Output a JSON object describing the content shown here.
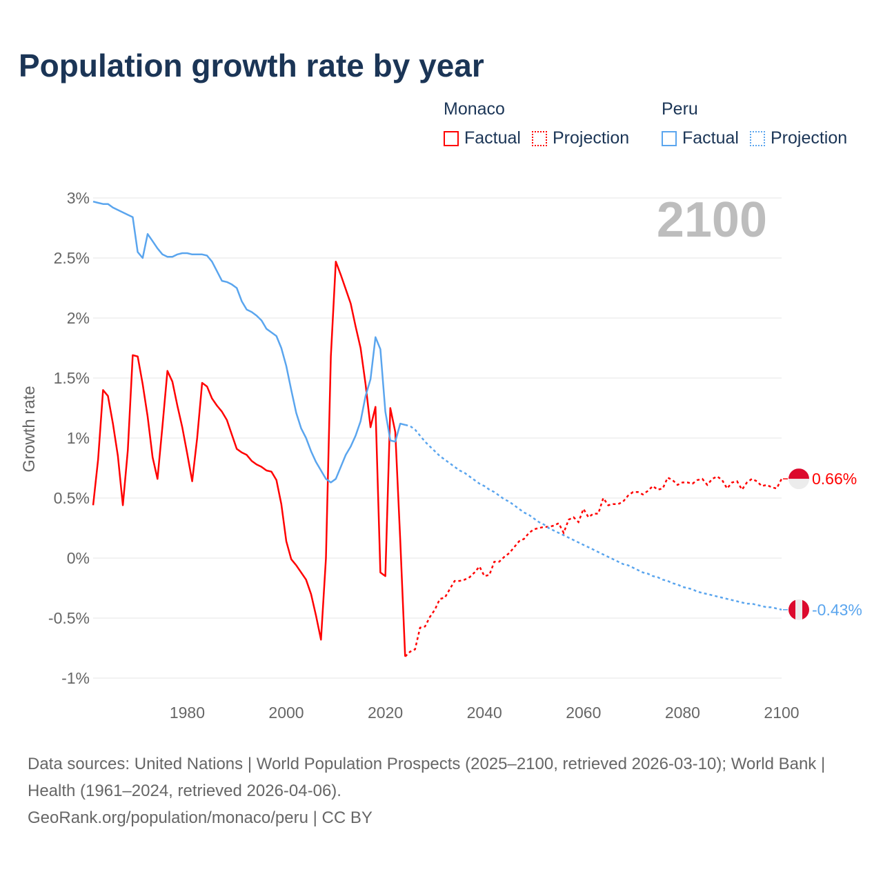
{
  "title": "Population growth rate by year",
  "legend": {
    "groups": [
      {
        "name": "Monaco",
        "factual": "Factual",
        "projection": "Projection",
        "color": "#ff0000"
      },
      {
        "name": "Peru",
        "factual": "Factual",
        "projection": "Projection",
        "color": "#5aa5ee"
      }
    ]
  },
  "current_year_label": "2100",
  "footer": {
    "sources": "Data sources: United Nations | World Population Prospects (2025–2100, retrieved 2026-03-10); World Bank | Health (1961–2024, retrieved 2026-04-06).",
    "link": "GeoRank.org/population/monaco/peru | CC BY"
  },
  "chart_data": {
    "type": "line",
    "ylabel": "Growth rate",
    "xlim": [
      1961,
      2100
    ],
    "ylim": [
      -1.15,
      3
    ],
    "x_ticks": [
      1980,
      2000,
      2020,
      2040,
      2060,
      2080,
      2100
    ],
    "x_tick_labels": [
      "1980",
      "2000",
      "2020",
      "2040",
      "2060",
      "2080",
      "2100"
    ],
    "y_ticks": [
      3,
      2.5,
      2,
      1.5,
      1,
      0.5,
      0,
      -0.5,
      -1
    ],
    "y_tick_labels": [
      "3%",
      "2.5%",
      "2%",
      "1.5%",
      "1%",
      "0.5%",
      "0%",
      "-0.5%",
      "-1%"
    ],
    "series": [
      {
        "name": "Monaco",
        "color": "#ff0000",
        "end_label": "0.66%",
        "factual_start": 1961,
        "factual": [
          0.44,
          0.82,
          1.4,
          1.35,
          1.12,
          0.85,
          0.44,
          0.9,
          1.69,
          1.68,
          1.45,
          1.18,
          0.84,
          0.66,
          1.1,
          1.56,
          1.47,
          1.27,
          1.09,
          0.87,
          0.64,
          1.0,
          1.46,
          1.43,
          1.33,
          1.27,
          1.22,
          1.15,
          1.03,
          0.91,
          0.88,
          0.86,
          0.81,
          0.78,
          0.76,
          0.73,
          0.72,
          0.65,
          0.45,
          0.14,
          -0.01,
          -0.06,
          -0.12,
          -0.18,
          -0.3,
          -0.48,
          -0.68,
          0.0,
          1.68,
          2.47,
          2.36,
          2.24,
          2.12,
          1.93,
          1.75,
          1.45,
          1.09,
          1.26,
          -0.12,
          -0.15,
          1.25,
          1.05,
          0.15,
          -0.82
        ],
        "projection_start": 2025,
        "projection": [
          -0.78,
          -0.76,
          -0.58,
          -0.57,
          -0.49,
          -0.43,
          -0.34,
          -0.33,
          -0.26,
          -0.19,
          -0.19,
          -0.18,
          -0.16,
          -0.12,
          -0.07,
          -0.15,
          -0.14,
          -0.03,
          -0.03,
          0.01,
          0.04,
          0.09,
          0.14,
          0.16,
          0.21,
          0.24,
          0.25,
          0.26,
          0.26,
          0.27,
          0.29,
          0.21,
          0.32,
          0.34,
          0.3,
          0.41,
          0.34,
          0.37,
          0.37,
          0.5,
          0.44,
          0.45,
          0.45,
          0.47,
          0.52,
          0.55,
          0.55,
          0.53,
          0.56,
          0.6,
          0.57,
          0.58,
          0.67,
          0.65,
          0.61,
          0.63,
          0.63,
          0.62,
          0.65,
          0.66,
          0.61,
          0.66,
          0.68,
          0.65,
          0.58,
          0.63,
          0.64,
          0.57,
          0.63,
          0.66,
          0.64,
          0.6,
          0.61,
          0.59,
          0.58,
          0.66
        ]
      },
      {
        "name": "Peru",
        "color": "#5aa5ee",
        "end_label": "-0.43%",
        "factual_start": 1961,
        "factual": [
          2.97,
          2.96,
          2.95,
          2.95,
          2.92,
          2.9,
          2.88,
          2.86,
          2.84,
          2.55,
          2.5,
          2.7,
          2.64,
          2.58,
          2.53,
          2.51,
          2.51,
          2.53,
          2.54,
          2.54,
          2.53,
          2.53,
          2.53,
          2.52,
          2.47,
          2.39,
          2.31,
          2.3,
          2.28,
          2.25,
          2.14,
          2.07,
          2.05,
          2.02,
          1.98,
          1.91,
          1.88,
          1.85,
          1.75,
          1.6,
          1.4,
          1.21,
          1.08,
          1.0,
          0.89,
          0.8,
          0.73,
          0.66,
          0.63,
          0.66,
          0.76,
          0.86,
          0.93,
          1.02,
          1.14,
          1.35,
          1.49,
          1.84,
          1.74,
          1.22,
          0.98,
          0.97,
          1.12,
          1.11
        ],
        "projection_start": 2025,
        "projection": [
          1.1,
          1.07,
          1.02,
          0.97,
          0.93,
          0.89,
          0.85,
          0.82,
          0.79,
          0.76,
          0.73,
          0.71,
          0.68,
          0.65,
          0.62,
          0.6,
          0.57,
          0.55,
          0.52,
          0.49,
          0.47,
          0.44,
          0.41,
          0.38,
          0.36,
          0.33,
          0.3,
          0.28,
          0.25,
          0.23,
          0.21,
          0.19,
          0.17,
          0.15,
          0.13,
          0.11,
          0.09,
          0.07,
          0.05,
          0.03,
          0.01,
          -0.01,
          -0.03,
          -0.05,
          -0.06,
          -0.08,
          -0.1,
          -0.12,
          -0.13,
          -0.15,
          -0.16,
          -0.18,
          -0.19,
          -0.21,
          -0.22,
          -0.24,
          -0.25,
          -0.26,
          -0.28,
          -0.29,
          -0.3,
          -0.31,
          -0.32,
          -0.33,
          -0.34,
          -0.35,
          -0.36,
          -0.37,
          -0.38,
          -0.38,
          -0.39,
          -0.4,
          -0.41,
          -0.41,
          -0.42,
          -0.43
        ]
      }
    ]
  }
}
